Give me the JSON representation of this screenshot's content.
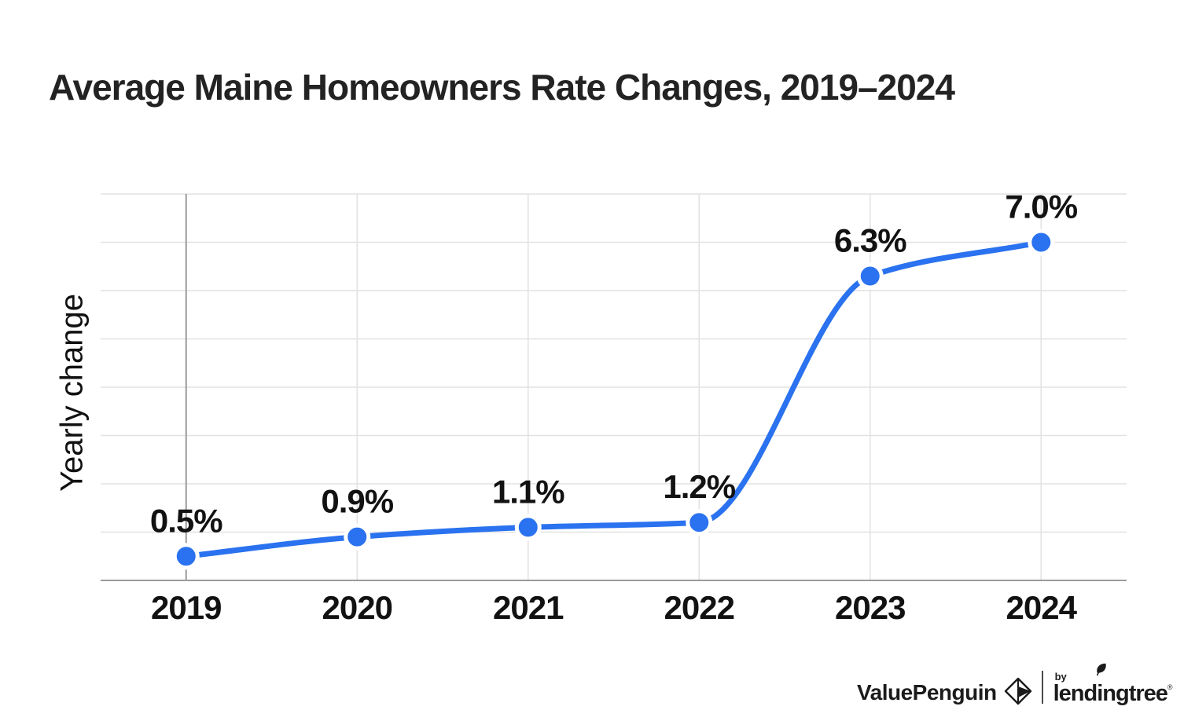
{
  "chart_data": {
    "type": "line",
    "title": "Average Maine Homeowners Rate Changes, 2019–2024",
    "categories": [
      "2019",
      "2020",
      "2021",
      "2022",
      "2023",
      "2024"
    ],
    "values": [
      0.5,
      0.9,
      1.1,
      1.2,
      6.3,
      7.0
    ],
    "point_labels": [
      "0.5%",
      "0.9%",
      "1.1%",
      "1.2%",
      "6.3%",
      "7.0%"
    ],
    "xlabel": "",
    "ylabel": "Yearly change",
    "ylim": [
      0,
      8
    ],
    "grid": true,
    "y_tick_labels_visible": false,
    "legend": "none",
    "smooth": true,
    "line_color": "#2a72ef",
    "marker_color": "#2a72ef",
    "marker_halo_color": "#ffffff",
    "grid_color": "#e2e2e2",
    "axis_color": "#9b9b9b",
    "label_color": "#121212",
    "title_color": "#232323",
    "background_color": "#ffffff"
  },
  "logo": {
    "valuepenguin": "ValuePenguin",
    "by": "by",
    "lendingtree": "lendingtree",
    "registered": "®"
  }
}
